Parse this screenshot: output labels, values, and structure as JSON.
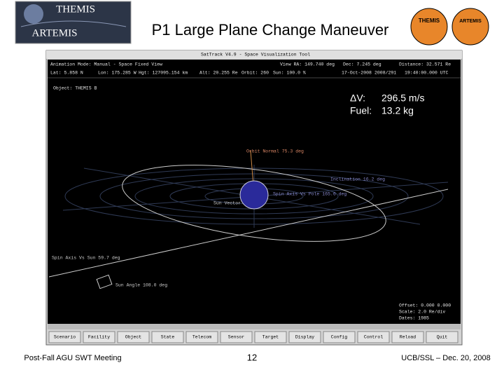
{
  "header": {
    "logo_top": "THEMIS",
    "logo_bottom": "ARTEMIS",
    "title": "P1 Large Plane Change Maneuver",
    "badge_left": "THEMIS",
    "badge_right": "ARTEMIS"
  },
  "window": {
    "title": "SatTrack V4.9 - Space Visualization Tool",
    "status_row_1": [
      "Animation Mode: Manual - Space Fixed View",
      "View RA: 149.740 deg",
      "Dec: 7.245 deg",
      "Distance: 32.571 Re"
    ],
    "status_row_2": [
      "Lat: 5.858 N",
      "Lon: 175.285 W",
      "Hgt: 127095.154 km",
      "Alt: 20.255 Re",
      "Orbit: 260",
      "Sun: 100.0 %",
      "17-Oct-2008",
      "2008/291",
      "19:40:00.000 UTC"
    ],
    "object": "Object: THEMIS B",
    "overlay": {
      "dv_label": "ΔV:",
      "dv_value": "296.5 m/s",
      "fuel_label": "Fuel:",
      "fuel_value": "13.2 kg"
    },
    "scene_labels": [
      "Orbit Normal 75.3 deg",
      "Inclination 16.2 deg",
      "Spin Axis Vs Pole 165.6 deg",
      "Sun Vector",
      "Spin Axis Vs Sun 59.7 deg",
      "Sun Angle 108.0 deg"
    ],
    "info": [
      "Offset: 0.000 0.000",
      "Scale: 2.0 Re/div",
      "Dates: 1985"
    ],
    "buttons": [
      "Scenario",
      "Facility",
      "Object",
      "State",
      "Telecom",
      "Sensor",
      "Target",
      "Display",
      "Config",
      "Control",
      "Reload",
      "Quit"
    ]
  },
  "footer": {
    "left": "Post-Fall AGU SWT Meeting",
    "page": "12",
    "right": "UCB/SSL – Dec. 20, 2008"
  }
}
